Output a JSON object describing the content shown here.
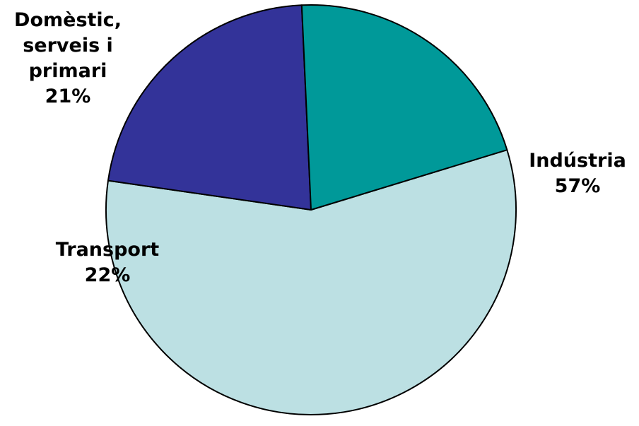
{
  "chart_data": {
    "type": "pie",
    "start_angle_deg": -17,
    "direction": "clockwise",
    "slices": [
      {
        "name": "Indústria",
        "label_lines": [
          "Indústria",
          "57%"
        ],
        "value": 57,
        "color": "#bce0e3"
      },
      {
        "name": "Transport",
        "label_lines": [
          "Transport",
          "22%"
        ],
        "value": 22,
        "color": "#333399"
      },
      {
        "name": "Domèstic, serveis i primari",
        "label_lines": [
          "Domèstic,",
          "serveis i",
          "primari",
          "21%"
        ],
        "value": 21,
        "color": "#009999"
      }
    ]
  }
}
